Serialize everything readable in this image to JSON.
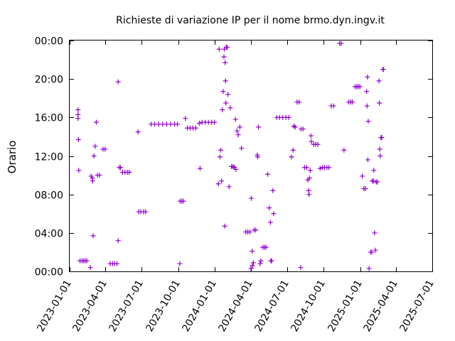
{
  "chart_data": {
    "type": "scatter",
    "title": "Richieste di variazione IP per il nome brmo.dyn.ingv.it",
    "xlabel": "",
    "ylabel": "Orario",
    "x_ticks": [
      "2023-01-01",
      "2023-04-01",
      "2023-07-01",
      "2023-10-01",
      "2024-01-01",
      "2024-04-01",
      "2024-07-01",
      "2024-10-01",
      "2025-01-01",
      "2025-04-01",
      "2025-07-01"
    ],
    "y_ticks": [
      "00:00",
      "04:00",
      "08:00",
      "12:00",
      "16:00",
      "20:00",
      "00:00"
    ],
    "xlim": [
      "2023-01-01",
      "2025-07-01"
    ],
    "ylim_hours": [
      0,
      24
    ],
    "marker": "+",
    "color": "#9400d3",
    "series": [
      {
        "points": [
          [
            "2023-01-22",
            16.8
          ],
          [
            "2023-01-22",
            16.3
          ],
          [
            "2023-01-22",
            15.9
          ],
          [
            "2023-01-23",
            13.7
          ],
          [
            "2023-01-24",
            10.5
          ],
          [
            "2023-01-27",
            1.1
          ],
          [
            "2023-02-01",
            1.1
          ],
          [
            "2023-02-05",
            1.1
          ],
          [
            "2023-02-09",
            1.1
          ],
          [
            "2023-02-13",
            1.1
          ],
          [
            "2023-02-22",
            0.4
          ],
          [
            "2023-02-24",
            9.9
          ],
          [
            "2023-02-27",
            9.7
          ],
          [
            "2023-02-28",
            9.4
          ],
          [
            "2023-03-01",
            3.7
          ],
          [
            "2023-03-03",
            12.0
          ],
          [
            "2023-03-06",
            13.0
          ],
          [
            "2023-03-09",
            15.5
          ],
          [
            "2023-03-12",
            10.0
          ],
          [
            "2023-03-17",
            10.0
          ],
          [
            "2023-03-26",
            12.7
          ],
          [
            "2023-03-31",
            12.7
          ],
          [
            "2023-04-13",
            0.8
          ],
          [
            "2023-04-19",
            0.8
          ],
          [
            "2023-04-24",
            0.8
          ],
          [
            "2023-04-30",
            0.8
          ],
          [
            "2023-05-03",
            3.2
          ],
          [
            "2023-05-03",
            19.7
          ],
          [
            "2023-05-06",
            10.8
          ],
          [
            "2023-05-09",
            10.8
          ],
          [
            "2023-05-14",
            10.3
          ],
          [
            "2023-05-20",
            10.3
          ],
          [
            "2023-05-26",
            10.3
          ],
          [
            "2023-05-31",
            10.3
          ],
          [
            "2023-06-22",
            14.5
          ],
          [
            "2023-06-24",
            6.2
          ],
          [
            "2023-06-29",
            6.2
          ],
          [
            "2023-07-06",
            6.2
          ],
          [
            "2023-07-11",
            6.2
          ],
          [
            "2023-07-25",
            15.3
          ],
          [
            "2023-08-03",
            15.3
          ],
          [
            "2023-08-13",
            15.3
          ],
          [
            "2023-08-23",
            15.3
          ],
          [
            "2023-09-02",
            15.3
          ],
          [
            "2023-09-12",
            15.3
          ],
          [
            "2023-09-22",
            15.3
          ],
          [
            "2023-09-29",
            15.3
          ],
          [
            "2023-10-05",
            0.8
          ],
          [
            "2023-10-06",
            7.3
          ],
          [
            "2023-10-10",
            7.3
          ],
          [
            "2023-10-14",
            7.3
          ],
          [
            "2023-10-19",
            15.9
          ],
          [
            "2023-10-24",
            14.9
          ],
          [
            "2023-10-31",
            14.9
          ],
          [
            "2023-11-07",
            14.9
          ],
          [
            "2023-11-14",
            14.9
          ],
          [
            "2023-11-23",
            15.4
          ],
          [
            "2023-11-25",
            10.7
          ],
          [
            "2023-11-30",
            15.5
          ],
          [
            "2023-12-08",
            15.5
          ],
          [
            "2023-12-16",
            15.5
          ],
          [
            "2023-12-24",
            15.5
          ],
          [
            "2023-12-31",
            15.5
          ],
          [
            "2024-01-10",
            9.1
          ],
          [
            "2024-01-12",
            23.1
          ],
          [
            "2024-01-14",
            11.9
          ],
          [
            "2024-01-16",
            12.6
          ],
          [
            "2024-01-18",
            9.4
          ],
          [
            "2024-01-20",
            16.8
          ],
          [
            "2024-01-22",
            18.7
          ],
          [
            "2024-01-24",
            22.3
          ],
          [
            "2024-01-25",
            23.1
          ],
          [
            "2024-01-26",
            4.7
          ],
          [
            "2024-01-27",
            21.7
          ],
          [
            "2024-01-28",
            19.8
          ],
          [
            "2024-01-29",
            17.5
          ],
          [
            "2024-01-30",
            23.3
          ],
          [
            "2024-02-01",
            23.3
          ],
          [
            "2024-02-03",
            18.4
          ],
          [
            "2024-02-06",
            8.8
          ],
          [
            "2024-02-09",
            17.0
          ],
          [
            "2024-02-12",
            10.9
          ],
          [
            "2024-02-16",
            10.9
          ],
          [
            "2024-02-19",
            10.8
          ],
          [
            "2024-02-23",
            10.6
          ],
          [
            "2024-02-22",
            15.8
          ],
          [
            "2024-02-26",
            14.6
          ],
          [
            "2024-02-29",
            14.2
          ],
          [
            "2024-03-04",
            15.0
          ],
          [
            "2024-03-08",
            12.8
          ],
          [
            "2024-03-19",
            4.1
          ],
          [
            "2024-03-24",
            4.1
          ],
          [
            "2024-03-29",
            4.1
          ],
          [
            "2024-04-01",
            0.3
          ],
          [
            "2024-04-02",
            7.6
          ],
          [
            "2024-04-04",
            2.1
          ],
          [
            "2024-04-05",
            0.6
          ],
          [
            "2024-04-07",
            0.9
          ],
          [
            "2024-04-09",
            4.3
          ],
          [
            "2024-04-13",
            4.3
          ],
          [
            "2024-04-17",
            12.1
          ],
          [
            "2024-04-18",
            11.9
          ],
          [
            "2024-04-20",
            15.0
          ],
          [
            "2024-04-24",
            0.8
          ],
          [
            "2024-04-26",
            1.1
          ],
          [
            "2024-05-01",
            2.5
          ],
          [
            "2024-05-05",
            2.5
          ],
          [
            "2024-05-09",
            2.5
          ],
          [
            "2024-05-13",
            10.1
          ],
          [
            "2024-05-17",
            6.6
          ],
          [
            "2024-05-20",
            5.1
          ],
          [
            "2024-05-21",
            1.1
          ],
          [
            "2024-05-23",
            1.1
          ],
          [
            "2024-05-26",
            8.4
          ],
          [
            "2024-05-28",
            6.0
          ],
          [
            "2024-06-05",
            16.0
          ],
          [
            "2024-06-12",
            16.0
          ],
          [
            "2024-06-20",
            16.0
          ],
          [
            "2024-06-28",
            16.0
          ],
          [
            "2024-07-05",
            16.0
          ],
          [
            "2024-07-12",
            11.9
          ],
          [
            "2024-07-16",
            12.6
          ],
          [
            "2024-07-18",
            15.1
          ],
          [
            "2024-07-21",
            15.0
          ],
          [
            "2024-07-26",
            17.6
          ],
          [
            "2024-07-31",
            17.6
          ],
          [
            "2024-08-04",
            0.4
          ],
          [
            "2024-08-05",
            14.8
          ],
          [
            "2024-08-10",
            14.8
          ],
          [
            "2024-08-14",
            10.8
          ],
          [
            "2024-08-19",
            10.8
          ],
          [
            "2024-08-22",
            9.5
          ],
          [
            "2024-08-24",
            8.4
          ],
          [
            "2024-08-25",
            8.0
          ],
          [
            "2024-08-26",
            9.7
          ],
          [
            "2024-08-28",
            10.5
          ],
          [
            "2024-08-30",
            14.1
          ],
          [
            "2024-08-31",
            13.5
          ],
          [
            "2024-09-06",
            13.2
          ],
          [
            "2024-09-11",
            13.2
          ],
          [
            "2024-09-16",
            13.2
          ],
          [
            "2024-09-22",
            10.7
          ],
          [
            "2024-09-28",
            10.8
          ],
          [
            "2024-10-03",
            10.8
          ],
          [
            "2024-10-09",
            10.8
          ],
          [
            "2024-10-14",
            10.8
          ],
          [
            "2024-10-20",
            17.2
          ],
          [
            "2024-10-26",
            17.2
          ],
          [
            "2024-11-10",
            23.7
          ],
          [
            "2024-11-14",
            23.7
          ],
          [
            "2024-11-21",
            12.6
          ],
          [
            "2024-12-03",
            17.6
          ],
          [
            "2024-12-08",
            17.6
          ],
          [
            "2024-12-12",
            17.6
          ],
          [
            "2024-12-19",
            19.2
          ],
          [
            "2024-12-23",
            19.2
          ],
          [
            "2024-12-27",
            19.2
          ],
          [
            "2024-12-31",
            19.2
          ],
          [
            "2025-01-06",
            9.9
          ],
          [
            "2025-01-10",
            8.6
          ],
          [
            "2025-01-14",
            8.6
          ],
          [
            "2025-01-17",
            18.7
          ],
          [
            "2025-01-18",
            17.2
          ],
          [
            "2025-01-19",
            20.2
          ],
          [
            "2025-01-20",
            11.6
          ],
          [
            "2025-01-21",
            15.6
          ],
          [
            "2025-01-23",
            0.3
          ],
          [
            "2025-01-27",
            2.0
          ],
          [
            "2025-01-30",
            2.0
          ],
          [
            "2025-01-31",
            9.4
          ],
          [
            "2025-02-03",
            9.4
          ],
          [
            "2025-02-04",
            10.5
          ],
          [
            "2025-02-06",
            4.0
          ],
          [
            "2025-02-08",
            2.2
          ],
          [
            "2025-02-10",
            9.3
          ],
          [
            "2025-02-13",
            9.3
          ],
          [
            "2025-02-17",
            19.8
          ],
          [
            "2025-02-18",
            17.5
          ],
          [
            "2025-02-19",
            12.7
          ],
          [
            "2025-02-20",
            12.0
          ],
          [
            "2025-02-22",
            13.9
          ],
          [
            "2025-02-24",
            13.9
          ],
          [
            "2025-02-27",
            21.0
          ],
          [
            "2025-02-28",
            21.0
          ]
        ]
      }
    ]
  }
}
